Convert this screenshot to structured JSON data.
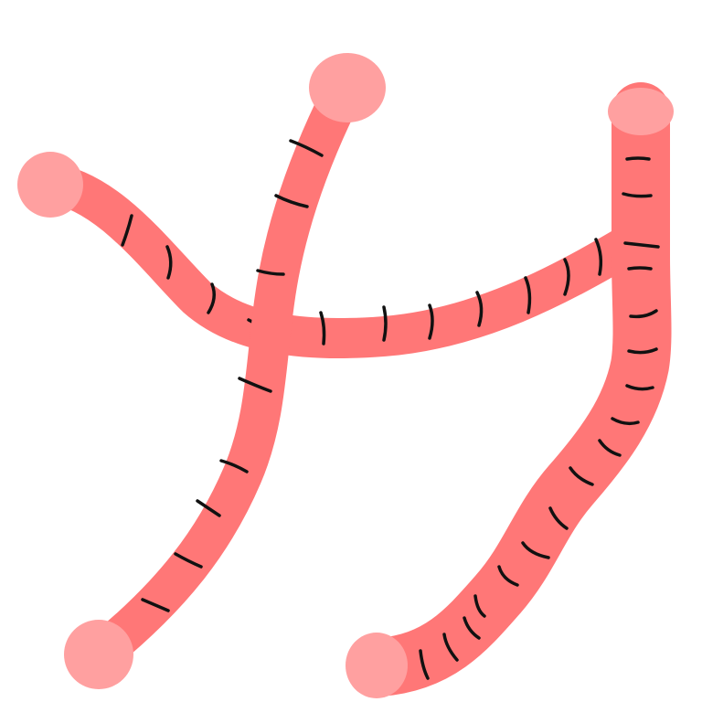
{
  "scene": {
    "subject": "worms",
    "count": 3,
    "background_color": "#ffffff",
    "colors": {
      "body": "#ff7777",
      "end_cap": "#ffa0a0",
      "segment_mark": "#111111"
    }
  }
}
